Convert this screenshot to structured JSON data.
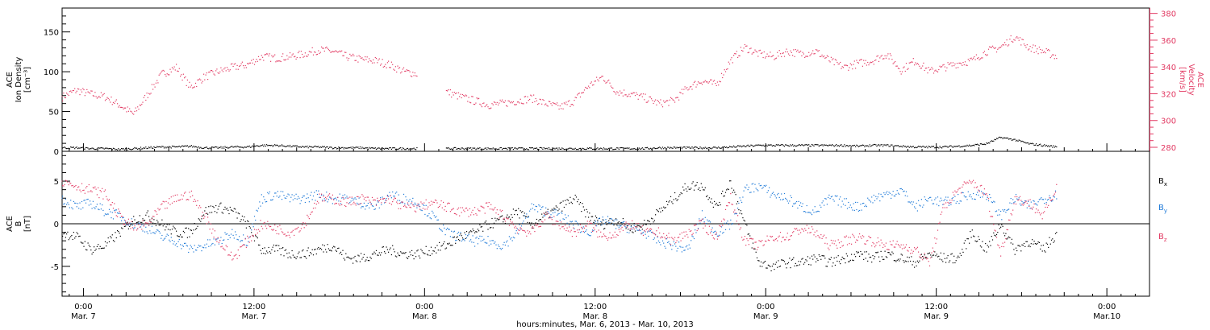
{
  "colors": {
    "velocity": "#e23a63",
    "density": "#000000",
    "bx": "#000000",
    "by": "#1f7ad8",
    "bz": "#e23a63",
    "axis": "#000000"
  },
  "x_caption": "hours:minutes, Mar.  6, 2013 - Mar. 10, 2013",
  "x_ticks": [
    {
      "hours": 0,
      "time": "0:00",
      "date": "Mar. 7"
    },
    {
      "hours": 12,
      "time": "12:00",
      "date": "Mar. 7"
    },
    {
      "hours": 24,
      "time": "0:00",
      "date": "Mar. 8"
    },
    {
      "hours": 36,
      "time": "12:00",
      "date": "Mar. 8"
    },
    {
      "hours": 48,
      "time": "0:00",
      "date": "Mar. 9"
    },
    {
      "hours": 60,
      "time": "12:00",
      "date": "Mar. 9"
    },
    {
      "hours": 72,
      "time": "0:00",
      "date": "Mar.10"
    }
  ],
  "chart_data": [
    {
      "type": "scatter",
      "panel": "top",
      "ylabel": "ACE\nIon Density\n[cm⁻³]",
      "ylabel_lines": [
        "ACE",
        "Ion Density",
        "[cm⁻³]"
      ],
      "ylim": [
        0,
        180
      ],
      "yticks": [
        0,
        50,
        100,
        150
      ],
      "y2label_lines": [
        "ACE",
        "Velocity",
        "[km/s]"
      ],
      "y2lim": [
        277,
        384
      ],
      "y2ticks": [
        280,
        300,
        320,
        340,
        360,
        380
      ],
      "x_units": "hours from 0:00 Mar. 7, 2013",
      "xlim": [
        -1.5,
        75
      ],
      "series": [
        {
          "axis": "right",
          "key": "velocity",
          "x": [
            -1.5,
            -0.5,
            0.5,
            1.5,
            2.5,
            3.5,
            4.5,
            5.5,
            6.5,
            7.5,
            8.5,
            9.5,
            10.5,
            11.5,
            12.5,
            13.5,
            14.5,
            15.5,
            16.5,
            17.5,
            18.5,
            19.5,
            20.5,
            21.5,
            22.5,
            23.5,
            24.5,
            25.5,
            26.5,
            27.5,
            28.5,
            29.5,
            30.5,
            31.5,
            32.5,
            33.5,
            34.5,
            35.5,
            36.5,
            37.5,
            38.5,
            39.5,
            40.5,
            41.5,
            42.5,
            43.5,
            44.5,
            45.5,
            46.5,
            47.5,
            48.5,
            49.5,
            50.5,
            51.5,
            52.5,
            53.5,
            54.5,
            55.5,
            56.5,
            57.5,
            58.5,
            59.5,
            60.5,
            61.5,
            62.5,
            63.5,
            64.5,
            65.5,
            66.5,
            67.5,
            68.5
          ],
          "values": [
            318,
            323,
            320,
            318,
            312,
            305,
            320,
            335,
            340,
            325,
            333,
            337,
            340,
            342,
            348,
            347,
            348,
            350,
            353,
            352,
            348,
            346,
            345,
            342,
            337,
            335,
            null,
            322,
            318,
            315,
            312,
            313,
            315,
            317,
            313,
            310,
            315,
            326,
            333,
            322,
            320,
            317,
            313,
            315,
            325,
            330,
            327,
            345,
            355,
            350,
            348,
            352,
            350,
            352,
            345,
            340,
            343,
            345,
            350,
            338,
            345,
            337,
            340,
            343,
            345,
            352,
            355,
            363,
            355,
            352,
            348
          ]
        },
        {
          "axis": "left",
          "key": "density",
          "x": [
            -1.5,
            -0.5,
            0.5,
            1.5,
            2.5,
            3.5,
            4.5,
            5.5,
            6.5,
            7.5,
            8.5,
            9.5,
            10.5,
            11.5,
            12.5,
            13.5,
            14.5,
            15.5,
            16.5,
            17.5,
            18.5,
            19.5,
            20.5,
            21.5,
            22.5,
            23.5,
            24.5,
            25.5,
            26.5,
            27.5,
            28.5,
            29.5,
            30.5,
            31.5,
            32.5,
            33.5,
            34.5,
            35.5,
            36.5,
            37.5,
            38.5,
            39.5,
            40.5,
            41.5,
            42.5,
            43.5,
            44.5,
            45.5,
            46.5,
            47.5,
            48.5,
            49.5,
            50.5,
            51.5,
            52.5,
            53.5,
            54.5,
            55.5,
            56.5,
            57.5,
            58.5,
            59.5,
            60.5,
            61.5,
            62.5,
            63.5,
            64.5,
            65.5,
            66.5,
            67.5,
            68.5
          ],
          "values": [
            5,
            5,
            4,
            4,
            3,
            4,
            5,
            6,
            6,
            7,
            5,
            5,
            6,
            6,
            8,
            8,
            7,
            6,
            6,
            5,
            5,
            5,
            4,
            4,
            4,
            4,
            null,
            4,
            4,
            4,
            4,
            4,
            4,
            4,
            4,
            4,
            4,
            4,
            4,
            4,
            4,
            4,
            5,
            5,
            5,
            5,
            5,
            6,
            7,
            8,
            8,
            8,
            8,
            8,
            8,
            8,
            7,
            8,
            8,
            7,
            6,
            6,
            6,
            7,
            8,
            10,
            18,
            15,
            10,
            8,
            6
          ]
        }
      ]
    },
    {
      "type": "scatter",
      "panel": "bottom",
      "ylabel": "ACE\nB\n[nT]",
      "ylabel_lines": [
        "ACE",
        "B",
        "[nT]"
      ],
      "ylim": [
        -8.5,
        8.5
      ],
      "yticks": [
        -5,
        0,
        5
      ],
      "zero_line": true,
      "x_units": "hours from 0:00 Mar. 7, 2013",
      "xlim": [
        -1.5,
        75
      ],
      "series": [
        {
          "name": "Bx",
          "key": "bx",
          "x": [
            -1.5,
            -0.5,
            0.5,
            1.5,
            2.5,
            3.5,
            4.5,
            5.5,
            6.5,
            7.5,
            8.5,
            9.5,
            10.5,
            11.5,
            12.5,
            13.5,
            14.5,
            15.5,
            16.5,
            17.5,
            18.5,
            19.5,
            20.5,
            21.5,
            22.5,
            23.5,
            24.5,
            25.5,
            26.5,
            27.5,
            28.5,
            29.5,
            30.5,
            31.5,
            32.5,
            33.5,
            34.5,
            35.5,
            36.5,
            37.5,
            38.5,
            39.5,
            40.5,
            41.5,
            42.5,
            43.5,
            44.5,
            45.5,
            46.5,
            47.5,
            48.5,
            49.5,
            50.5,
            51.5,
            52.5,
            53.5,
            54.5,
            55.5,
            56.5,
            57.5,
            58.5,
            59.5,
            60.5,
            61.5,
            62.5,
            63.5,
            64.5,
            65.5,
            66.5,
            67.5,
            68.5
          ],
          "values": [
            -1,
            -1.5,
            -3,
            -2.5,
            -1,
            0.5,
            1,
            0,
            -1,
            -1,
            1.5,
            2,
            1.5,
            0,
            -3,
            -3,
            -3.5,
            -3.5,
            -3,
            -2.5,
            -4,
            -4,
            -3.5,
            -3,
            -3.5,
            -3.5,
            -3,
            -2.5,
            -1.5,
            -1,
            0,
            0.5,
            1.5,
            0,
            1,
            2,
            3,
            1,
            0,
            0.5,
            -0.5,
            0,
            1.5,
            3,
            4.5,
            4.5,
            2,
            5,
            0,
            -4.5,
            -5,
            -4.5,
            -4.5,
            -4,
            -4.5,
            -4,
            -3.5,
            -4,
            -3.5,
            -4,
            -4.5,
            -3.5,
            -4,
            -4,
            -1,
            -3,
            0,
            -3,
            -2,
            -3,
            -1
          ]
        },
        {
          "name": "By",
          "key": "by",
          "x": [
            -1.5,
            -0.5,
            0.5,
            1.5,
            2.5,
            3.5,
            4.5,
            5.5,
            6.5,
            7.5,
            8.5,
            9.5,
            10.5,
            11.5,
            12.5,
            13.5,
            14.5,
            15.5,
            16.5,
            17.5,
            18.5,
            19.5,
            20.5,
            21.5,
            22.5,
            23.5,
            24.5,
            25.5,
            26.5,
            27.5,
            28.5,
            29.5,
            30.5,
            31.5,
            32.5,
            33.5,
            34.5,
            35.5,
            36.5,
            37.5,
            38.5,
            39.5,
            40.5,
            41.5,
            42.5,
            43.5,
            44.5,
            45.5,
            46.5,
            47.5,
            48.5,
            49.5,
            50.5,
            51.5,
            52.5,
            53.5,
            54.5,
            55.5,
            56.5,
            57.5,
            58.5,
            59.5,
            60.5,
            61.5,
            62.5,
            63.5,
            64.5,
            65.5,
            66.5,
            67.5,
            68.5
          ],
          "values": [
            3,
            2,
            2.5,
            1.5,
            1,
            0,
            -0.5,
            -1.5,
            -2,
            -3,
            -2.5,
            -2,
            -1,
            -2,
            3,
            3.5,
            3,
            3,
            3.5,
            3,
            3,
            2.5,
            2,
            3.5,
            3,
            2.5,
            1,
            -1,
            -1.5,
            -2,
            -2,
            -2.5,
            -1,
            2,
            1.5,
            1,
            0,
            -1,
            0.5,
            0,
            -0.5,
            -1,
            -2,
            -2.5,
            -3,
            1,
            -1,
            0,
            4,
            4.5,
            3.5,
            3,
            2,
            1.5,
            3,
            2.5,
            2,
            3,
            3.5,
            4,
            2,
            3,
            2.5,
            3,
            3.5,
            3.5,
            1,
            3,
            2,
            3,
            3.5
          ]
        },
        {
          "name": "Bz",
          "key": "bz",
          "x": [
            -1.5,
            -0.5,
            0.5,
            1.5,
            2.5,
            3.5,
            4.5,
            5.5,
            6.5,
            7.5,
            8.5,
            9.5,
            10.5,
            11.5,
            12.5,
            13.5,
            14.5,
            15.5,
            16.5,
            17.5,
            18.5,
            19.5,
            20.5,
            21.5,
            22.5,
            23.5,
            24.5,
            25.5,
            26.5,
            27.5,
            28.5,
            29.5,
            30.5,
            31.5,
            32.5,
            33.5,
            34.5,
            35.5,
            36.5,
            37.5,
            38.5,
            39.5,
            40.5,
            41.5,
            42.5,
            43.5,
            44.5,
            45.5,
            46.5,
            47.5,
            48.5,
            49.5,
            50.5,
            51.5,
            52.5,
            53.5,
            54.5,
            55.5,
            56.5,
            57.5,
            58.5,
            59.5,
            60.5,
            61.5,
            62.5,
            63.5,
            64.5,
            65.5,
            66.5,
            67.5,
            68.5
          ],
          "values": [
            5,
            4.5,
            4,
            3.5,
            1,
            -0.5,
            0,
            2,
            3,
            3.5,
            1,
            -2,
            -4,
            -2,
            0,
            -0.5,
            -1,
            0,
            3,
            3,
            2.5,
            3,
            2.5,
            3,
            2,
            2,
            2.5,
            2,
            1.5,
            1.5,
            2,
            1,
            -0.5,
            -1,
            1,
            0,
            -1,
            0,
            -1.5,
            -1,
            0,
            -1,
            -1,
            -2,
            -1,
            0,
            -1.5,
            3,
            -2,
            -2.5,
            -1.5,
            -1.5,
            -0.5,
            -1,
            -2.5,
            -2,
            -1.5,
            -2,
            -2.5,
            -2.5,
            -3,
            -4.5,
            2,
            4,
            5,
            3.5,
            -3.5,
            3,
            2.5,
            1,
            4.5
          ]
        }
      ],
      "legend": {
        "position": "right",
        "entries": [
          "B",
          "B",
          "B"
        ],
        "subscripts": [
          "x",
          "y",
          "z"
        ]
      }
    }
  ]
}
